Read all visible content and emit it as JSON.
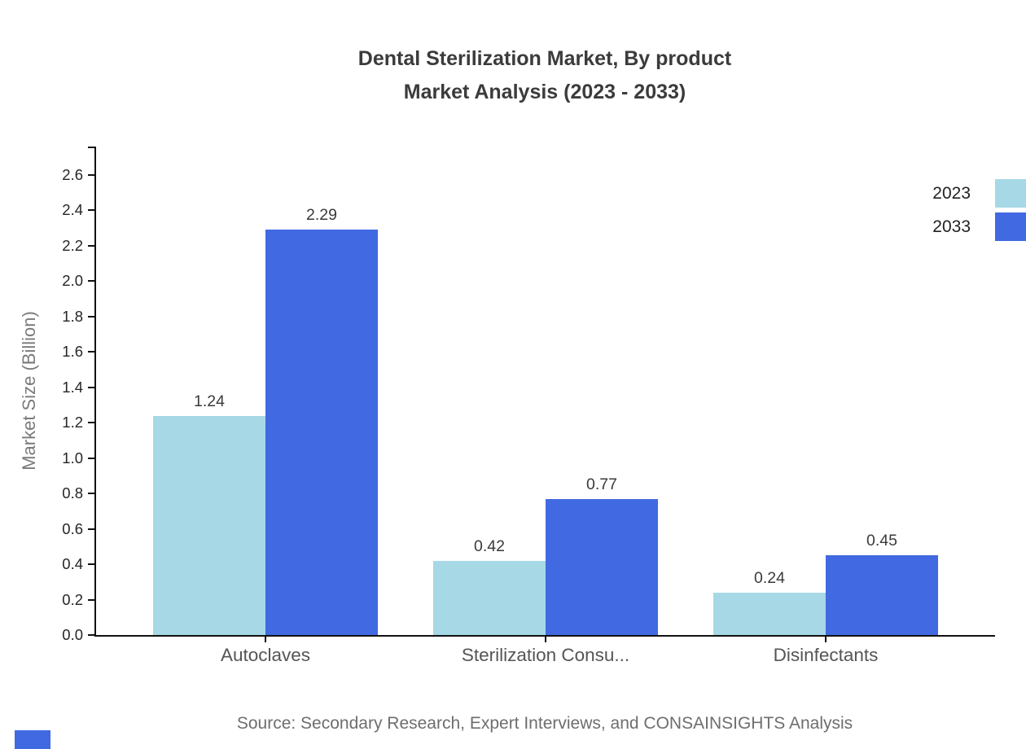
{
  "title": {
    "line1": "Dental Sterilization Market, By product",
    "line2": "Market Analysis (2023 - 2033)"
  },
  "source": "Source: Secondary Research, Expert Interviews, and CONSAINSIGHTS Analysis",
  "colors": {
    "series_2023": "#a7d8e6",
    "series_2033": "#4169e1",
    "brand": "#4169e1",
    "axis": "#111111"
  },
  "chart_data": {
    "type": "bar",
    "title": "Dental Sterilization Market, By product Market Analysis (2023 - 2033)",
    "categories": [
      "Autoclaves",
      "Sterilization Consu...",
      "Disinfectants"
    ],
    "series": [
      {
        "name": "2023",
        "color": "#a7d8e6",
        "values": [
          1.24,
          0.42,
          0.24
        ]
      },
      {
        "name": "2033",
        "color": "#4169e1",
        "values": [
          2.29,
          0.77,
          0.45
        ]
      }
    ],
    "xlabel": "",
    "ylabel": "Market Size (Billion)",
    "ylim": [
      0,
      2.6
    ],
    "ytick_step": 0.2,
    "grid": false,
    "legend_position": "top-right",
    "value_labels": true,
    "value_label_format": "0.00",
    "tick_label_format": "0.0"
  }
}
